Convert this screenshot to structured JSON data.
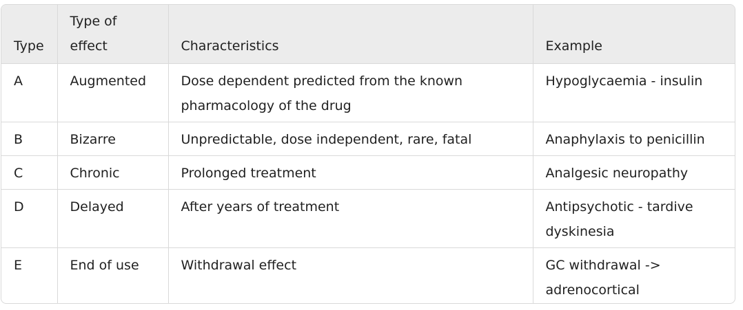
{
  "table": {
    "headers": [
      "Type",
      "Type of effect",
      "Characteristics",
      "Example"
    ],
    "rows": [
      [
        "A",
        "Augmented",
        "Dose dependent predicted from the known pharmacology of the drug",
        "Hypoglycaemia - insulin"
      ],
      [
        "B",
        "Bizarre",
        "Unpredictable, dose independent, rare, fatal",
        "Anaphylaxis to penicillin"
      ],
      [
        "C",
        "Chronic",
        "Prolonged treatment",
        "Analgesic neuropathy"
      ],
      [
        "D",
        "Delayed",
        "After years of treatment",
        "Antipsychotic - tardive dyskinesia"
      ],
      [
        "E",
        "End of use",
        "Withdrawal effect",
        "GC withdrawal -> adrenocortical"
      ]
    ]
  }
}
